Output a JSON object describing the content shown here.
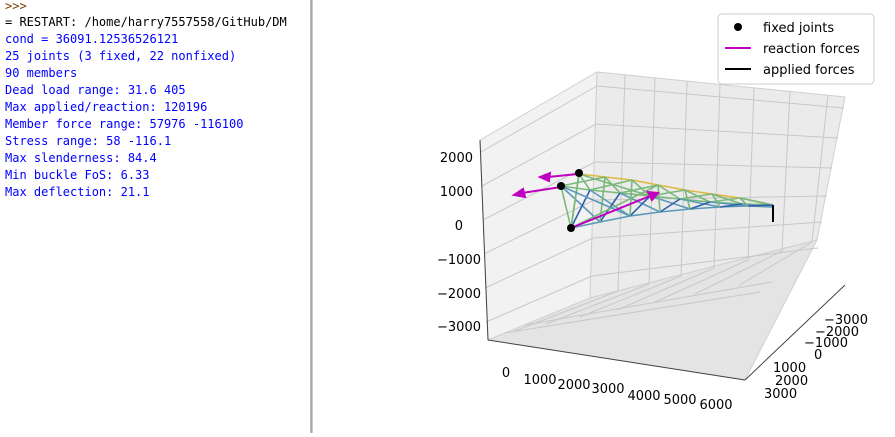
{
  "shell": {
    "prompt": ">>>",
    "restart_line": "= RESTART: /home/harry7557558/GitHub/DM",
    "output_lines": [
      "cond = 36091.12536526121",
      "25 joints (3 fixed, 22 nonfixed)",
      "90 members",
      "Dead load range: 31.6 405",
      "Max applied/reaction: 120196",
      "Member force range: 57976 -116100",
      "Stress range: 58 -116.1",
      "Max slenderness: 84.4",
      "Min buckle FoS: 6.33",
      "Max deflection: 21.1"
    ],
    "colors": {
      "prompt": "#7a3b00",
      "restart": "#000000",
      "output": "#0000ff"
    }
  },
  "plot": {
    "legend": {
      "placement": "top-right",
      "entries": [
        {
          "label": "fixed joints",
          "marker": "dot",
          "color": "#000000"
        },
        {
          "label": "reaction forces",
          "marker": "line",
          "color": "#bf00bf"
        },
        {
          "label": "applied forces",
          "marker": "line",
          "color": "#000000"
        }
      ]
    },
    "z_ticks": [
      "2000",
      "1000",
      "0",
      "−1000",
      "−2000",
      "−3000"
    ],
    "x_ticks": [
      "0",
      "1000",
      "2000",
      "3000",
      "4000",
      "5000",
      "6000"
    ],
    "y_ticks": [
      "−3000",
      "−2000",
      "−1000",
      "0",
      "1000",
      "2000",
      "3000"
    ],
    "colors": {
      "member_a": "#e0b840",
      "member_b": "#7ab87a",
      "member_c": "#5a9ab8",
      "member_d": "#3060b0",
      "reaction": "#bf00bf"
    }
  }
}
